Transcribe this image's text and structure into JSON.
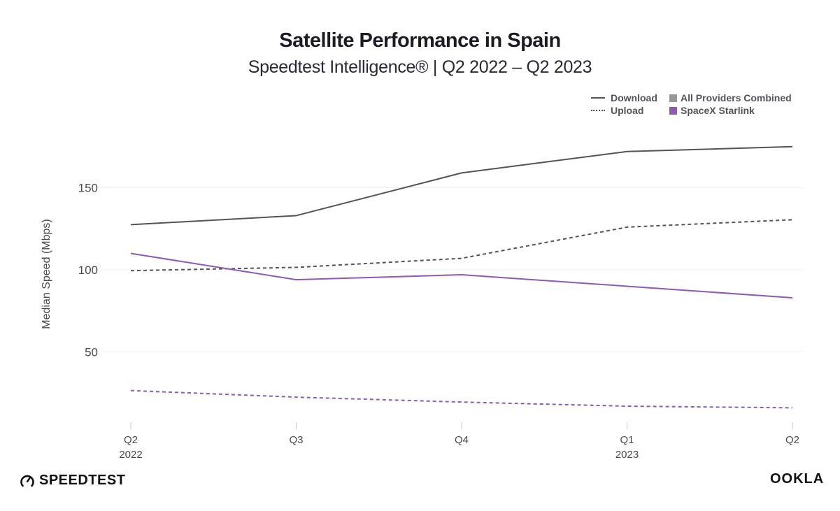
{
  "header": {
    "title": "Satellite Performance in Spain",
    "subtitle": "Speedtest Intelligence® | Q2 2022 – Q2 2023"
  },
  "legend": {
    "download": "Download",
    "upload": "Upload",
    "all_providers": "All Providers Combined",
    "starlink": "SpaceX Starlink"
  },
  "colors": {
    "all_providers": "#55535a",
    "starlink": "#9158b5",
    "all_providers_swatch": "#9a9896",
    "grid": "#f0f0f0",
    "axis_text": "#4a4a52"
  },
  "branding": {
    "left": "SPEEDTEST",
    "right": "OOKLA"
  },
  "chart_data": {
    "type": "line",
    "title": "Satellite Performance in Spain",
    "subtitle": "Speedtest Intelligence® | Q2 2022 – Q2 2023",
    "xlabel": "",
    "ylabel": "Median Speed (Mbps)",
    "categories": [
      "Q2",
      "Q3",
      "Q4",
      "Q1",
      "Q2"
    ],
    "category_years": [
      "2022",
      "",
      "",
      "2023",
      ""
    ],
    "yticks": [
      50,
      100,
      150
    ],
    "ylim": [
      0,
      185
    ],
    "grid": true,
    "legend_position": "top-right",
    "series": [
      {
        "name": "All Providers Combined – Download",
        "style": "solid",
        "color": "#55535a",
        "values": [
          127.5,
          133,
          159,
          172,
          175
        ]
      },
      {
        "name": "All Providers Combined – Upload",
        "style": "dashed",
        "color": "#55535a",
        "values": [
          99.5,
          101.5,
          107,
          126,
          130.5
        ]
      },
      {
        "name": "SpaceX Starlink – Download",
        "style": "solid",
        "color": "#9158b5",
        "values": [
          110,
          94,
          97,
          90,
          83
        ]
      },
      {
        "name": "SpaceX Starlink – Upload",
        "style": "dashed",
        "color": "#9158b5",
        "values": [
          26.5,
          22.5,
          19.5,
          17,
          16
        ]
      }
    ]
  }
}
